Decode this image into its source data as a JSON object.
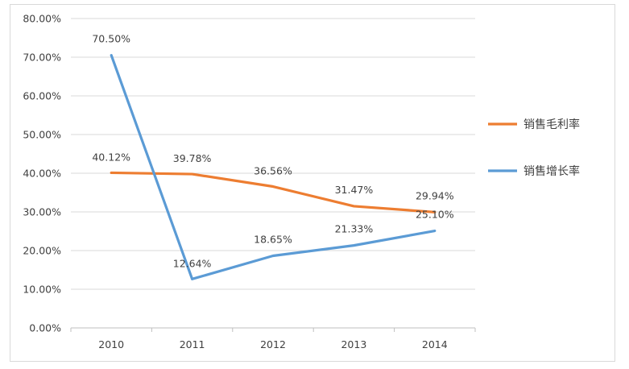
{
  "chart_data": {
    "type": "line",
    "categories": [
      "2010",
      "2011",
      "2012",
      "2013",
      "2014"
    ],
    "y_ticks": [
      "0.00%",
      "10.00%",
      "20.00%",
      "30.00%",
      "40.00%",
      "50.00%",
      "60.00%",
      "70.00%",
      "80.00%"
    ],
    "ylim": [
      0,
      80
    ],
    "grid": true,
    "legend_position": "right",
    "series": [
      {
        "name": "销售毛利率",
        "color": "#ed7d31",
        "values": [
          40.12,
          39.78,
          36.56,
          31.47,
          29.94
        ],
        "labels": [
          "40.12%",
          "39.78%",
          "36.56%",
          "31.47%",
          "29.94%"
        ]
      },
      {
        "name": "销售增长率",
        "color": "#5b9bd5",
        "values": [
          70.5,
          12.64,
          18.65,
          21.33,
          25.1
        ],
        "labels": [
          "70.50%",
          "12.64%",
          "18.65%",
          "21.33%",
          "25.10%"
        ]
      }
    ]
  }
}
